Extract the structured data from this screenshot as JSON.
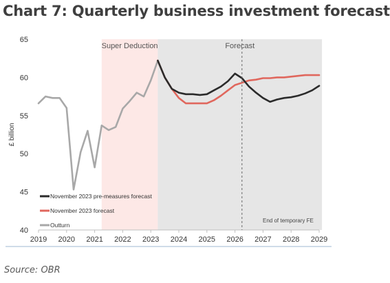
{
  "title": "Chart 7: Quarterly business investment forecast",
  "source": "Source: OBR",
  "chart_data": {
    "type": "line",
    "ylabel": "£ billion",
    "xlabel": "",
    "ylim": [
      40,
      65
    ],
    "xlim": [
      2019,
      2029
    ],
    "y_ticks": [
      40,
      45,
      50,
      55,
      60,
      65
    ],
    "x_ticks": [
      "2019",
      "2020",
      "2021",
      "2022",
      "2023",
      "2024",
      "2025",
      "2026",
      "2027",
      "2028",
      "2029"
    ],
    "grid": false,
    "legend_position": "bottom-left",
    "shaded_regions": [
      {
        "label": "Super Deduction",
        "x_start": 2021.25,
        "x_end": 2023.25,
        "color": "#fde8e6"
      },
      {
        "label": "Forecast",
        "x_start": 2023.25,
        "x_end": 2029.1,
        "color": "#e6e6e6"
      }
    ],
    "vertical_marker": {
      "x": 2026.25,
      "label": "End of temporary FE"
    },
    "series": [
      {
        "name": "November 2023 pre-measures forecast",
        "color": "#2b2b2b",
        "points": [
          [
            2023.25,
            62.2
          ],
          [
            2023.5,
            60.0
          ],
          [
            2023.75,
            58.5
          ],
          [
            2024.0,
            58.0
          ],
          [
            2024.25,
            57.8
          ],
          [
            2024.5,
            57.8
          ],
          [
            2024.75,
            57.7
          ],
          [
            2025.0,
            57.8
          ],
          [
            2025.25,
            58.3
          ],
          [
            2025.5,
            58.8
          ],
          [
            2025.75,
            59.5
          ],
          [
            2026.0,
            60.5
          ],
          [
            2026.25,
            59.9
          ],
          [
            2026.5,
            58.8
          ],
          [
            2026.75,
            58.0
          ],
          [
            2027.0,
            57.3
          ],
          [
            2027.25,
            56.8
          ],
          [
            2027.5,
            57.1
          ],
          [
            2027.75,
            57.3
          ],
          [
            2028.0,
            57.4
          ],
          [
            2028.25,
            57.6
          ],
          [
            2028.5,
            57.9
          ],
          [
            2028.75,
            58.3
          ],
          [
            2029.0,
            58.9
          ]
        ]
      },
      {
        "name": "November 2023 forecast",
        "color": "#e0675d",
        "points": [
          [
            2023.25,
            62.2
          ],
          [
            2023.5,
            60.0
          ],
          [
            2023.75,
            58.5
          ],
          [
            2024.0,
            57.3
          ],
          [
            2024.25,
            56.6
          ],
          [
            2024.5,
            56.6
          ],
          [
            2024.75,
            56.6
          ],
          [
            2025.0,
            56.6
          ],
          [
            2025.25,
            57.0
          ],
          [
            2025.5,
            57.6
          ],
          [
            2025.75,
            58.3
          ],
          [
            2026.0,
            59.0
          ],
          [
            2026.25,
            59.3
          ],
          [
            2026.5,
            59.6
          ],
          [
            2026.75,
            59.7
          ],
          [
            2027.0,
            59.9
          ],
          [
            2027.25,
            59.9
          ],
          [
            2027.5,
            60.0
          ],
          [
            2027.75,
            60.0
          ],
          [
            2028.0,
            60.1
          ],
          [
            2028.25,
            60.2
          ],
          [
            2028.5,
            60.3
          ],
          [
            2028.75,
            60.3
          ],
          [
            2029.0,
            60.3
          ]
        ]
      },
      {
        "name": "Outturn",
        "color": "#a8a8a8",
        "points": [
          [
            2019.0,
            56.6
          ],
          [
            2019.25,
            57.5
          ],
          [
            2019.5,
            57.3
          ],
          [
            2019.75,
            57.3
          ],
          [
            2020.0,
            56.0
          ],
          [
            2020.25,
            45.3
          ],
          [
            2020.5,
            50.2
          ],
          [
            2020.75,
            53.0
          ],
          [
            2021.0,
            48.2
          ],
          [
            2021.25,
            53.7
          ],
          [
            2021.5,
            53.1
          ],
          [
            2021.75,
            53.5
          ],
          [
            2022.0,
            55.9
          ],
          [
            2022.25,
            56.9
          ],
          [
            2022.5,
            58.0
          ],
          [
            2022.75,
            57.5
          ],
          [
            2023.0,
            59.6
          ],
          [
            2023.25,
            62.2
          ]
        ]
      }
    ]
  }
}
